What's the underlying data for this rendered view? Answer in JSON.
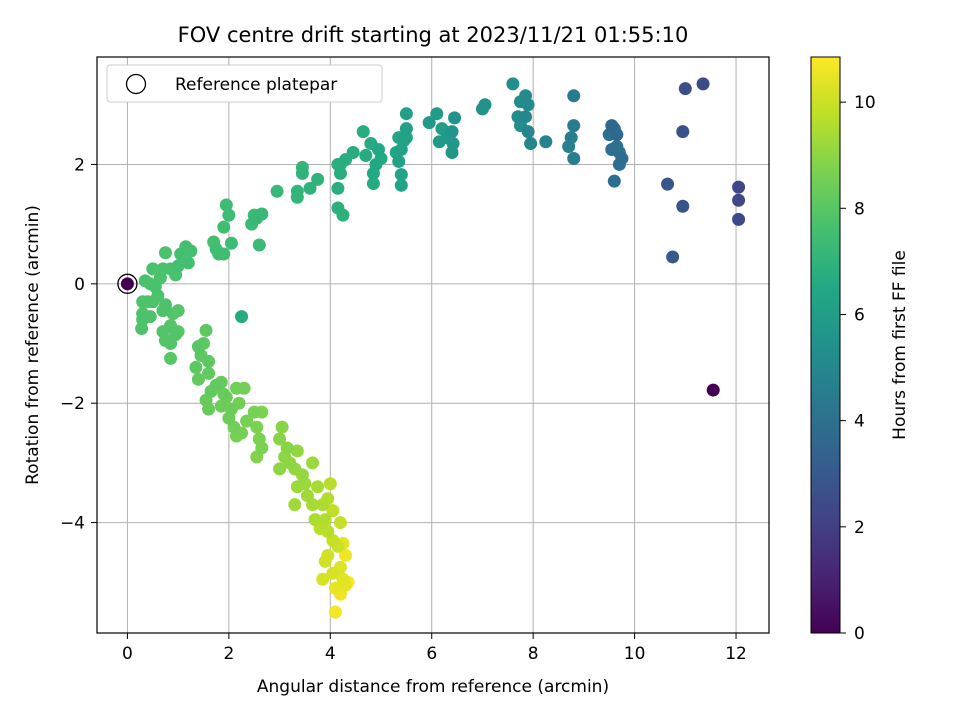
{
  "chart_data": {
    "type": "scatter",
    "title": "FOV centre drift starting at 2023/11/21 01:55:10",
    "xlabel": "Angular distance from reference (arcmin)",
    "ylabel": "Rotation from reference (arcmin)",
    "xlim": [
      -0.6,
      12.65
    ],
    "ylim": [
      -5.85,
      3.8
    ],
    "xticks": [
      0,
      2,
      4,
      6,
      8,
      10,
      12
    ],
    "yticks": [
      -4,
      -2,
      0,
      2
    ],
    "xtick_labels": [
      "0",
      "2",
      "4",
      "6",
      "8",
      "10",
      "12"
    ],
    "ytick_labels": [
      "−4",
      "−2",
      "0",
      "2"
    ],
    "grid": true,
    "legend": {
      "placement": "top-left",
      "entries": [
        "Reference platepar"
      ]
    },
    "colorbar": {
      "label": "Hours from first FF file",
      "range": [
        0,
        10.85
      ],
      "ticks": [
        0,
        2,
        4,
        6,
        8,
        10
      ],
      "tick_labels": [
        "0",
        "2",
        "4",
        "6",
        "8",
        "10"
      ],
      "colormap": "viridis"
    },
    "reference_point": {
      "x": 0,
      "y": 0,
      "hours": 0
    },
    "series": [
      {
        "points": [
          [
            11.55,
            -1.78,
            0.0
          ],
          [
            12.05,
            1.62,
            2.3
          ],
          [
            12.05,
            1.4,
            2.3
          ],
          [
            12.05,
            1.08,
            2.4
          ],
          [
            11.35,
            3.35,
            2.5
          ],
          [
            11.0,
            3.27,
            2.6
          ],
          [
            10.95,
            2.55,
            2.7
          ],
          [
            10.95,
            1.3,
            2.8
          ],
          [
            10.65,
            1.67,
            2.9
          ],
          [
            10.75,
            0.45,
            3.0
          ],
          [
            9.55,
            2.65,
            3.6
          ],
          [
            9.65,
            2.5,
            3.7
          ],
          [
            9.75,
            2.1,
            3.8
          ],
          [
            9.6,
            1.72,
            3.9
          ],
          [
            9.55,
            2.25,
            3.9
          ],
          [
            9.7,
            2.0,
            4.0
          ],
          [
            9.5,
            2.5,
            4.0
          ],
          [
            9.65,
            2.3,
            4.1
          ],
          [
            9.6,
            2.6,
            4.1
          ],
          [
            9.7,
            2.2,
            4.2
          ],
          [
            8.8,
            3.15,
            4.4
          ],
          [
            8.8,
            2.65,
            4.5
          ],
          [
            8.75,
            2.45,
            4.6
          ],
          [
            8.8,
            2.1,
            4.6
          ],
          [
            8.7,
            2.3,
            4.7
          ],
          [
            8.25,
            2.38,
            4.8
          ],
          [
            7.95,
            2.35,
            4.9
          ],
          [
            7.9,
            2.55,
            5.0
          ],
          [
            7.85,
            2.8,
            5.0
          ],
          [
            7.9,
            3.0,
            5.1
          ],
          [
            7.85,
            3.15,
            5.1
          ],
          [
            7.7,
            2.8,
            5.2
          ],
          [
            7.75,
            3.05,
            5.2
          ],
          [
            7.6,
            3.35,
            5.3
          ],
          [
            7.75,
            2.65,
            5.3
          ],
          [
            7.05,
            3.0,
            5.5
          ],
          [
            7.0,
            2.93,
            5.5
          ],
          [
            6.45,
            2.78,
            5.6
          ],
          [
            6.4,
            2.55,
            5.6
          ],
          [
            6.42,
            2.35,
            5.7
          ],
          [
            6.4,
            2.2,
            5.7
          ],
          [
            6.3,
            2.45,
            5.8
          ],
          [
            6.15,
            2.38,
            5.8
          ],
          [
            6.1,
            2.85,
            5.9
          ],
          [
            5.95,
            2.7,
            5.9
          ],
          [
            6.2,
            2.6,
            6.0
          ],
          [
            6.35,
            2.5,
            6.0
          ],
          [
            5.5,
            2.85,
            6.1
          ],
          [
            5.5,
            2.6,
            6.1
          ],
          [
            5.45,
            2.4,
            6.2
          ],
          [
            5.4,
            2.25,
            6.2
          ],
          [
            5.35,
            2.05,
            6.2
          ],
          [
            5.4,
            1.83,
            6.3
          ],
          [
            5.4,
            1.65,
            6.3
          ],
          [
            5.3,
            2.2,
            6.3
          ],
          [
            5.5,
            2.45,
            6.4
          ],
          [
            5.35,
            2.45,
            6.4
          ],
          [
            4.95,
            2.25,
            6.5
          ],
          [
            4.9,
            2.0,
            6.5
          ],
          [
            4.85,
            1.85,
            6.5
          ],
          [
            4.85,
            1.68,
            6.6
          ],
          [
            4.8,
            2.35,
            6.6
          ],
          [
            5.0,
            2.1,
            6.6
          ],
          [
            4.7,
            2.15,
            6.6
          ],
          [
            4.65,
            2.55,
            6.7
          ],
          [
            4.45,
            2.2,
            6.7
          ],
          [
            4.3,
            2.08,
            6.7
          ],
          [
            4.2,
            2.0,
            6.8
          ],
          [
            4.2,
            1.85,
            6.8
          ],
          [
            4.15,
            1.6,
            6.8
          ],
          [
            4.15,
            1.27,
            6.9
          ],
          [
            4.25,
            1.15,
            6.9
          ],
          [
            4.15,
            2.0,
            6.9
          ],
          [
            3.75,
            1.75,
            7.0
          ],
          [
            3.6,
            1.6,
            7.0
          ],
          [
            3.45,
            1.85,
            7.0
          ],
          [
            3.45,
            1.95,
            7.1
          ],
          [
            3.35,
            1.55,
            7.1
          ],
          [
            3.35,
            1.45,
            7.1
          ],
          [
            2.95,
            1.55,
            7.2
          ],
          [
            2.65,
            1.17,
            7.2
          ],
          [
            2.55,
            1.1,
            7.2
          ],
          [
            2.5,
            1.15,
            7.3
          ],
          [
            2.45,
            1.0,
            7.3
          ],
          [
            2.6,
            0.65,
            7.3
          ],
          [
            2.05,
            0.68,
            7.4
          ],
          [
            1.95,
            1.32,
            7.4
          ],
          [
            2.0,
            1.15,
            7.4
          ],
          [
            1.9,
            0.95,
            7.5
          ],
          [
            1.9,
            0.5,
            7.5
          ],
          [
            1.8,
            0.5,
            7.5
          ],
          [
            1.75,
            0.58,
            7.5
          ],
          [
            1.7,
            0.7,
            7.6
          ],
          [
            2.25,
            -0.55,
            6.6
          ],
          [
            1.15,
            0.62,
            7.6
          ],
          [
            1.25,
            0.55,
            7.6
          ],
          [
            1.05,
            0.5,
            7.6
          ],
          [
            1.2,
            0.35,
            7.6
          ],
          [
            1.0,
            0.3,
            7.6
          ],
          [
            0.95,
            0.15,
            7.7
          ],
          [
            0.85,
            0.25,
            7.7
          ],
          [
            0.75,
            0.52,
            7.7
          ],
          [
            0.7,
            0.25,
            7.7
          ],
          [
            0.65,
            0.1,
            7.7
          ],
          [
            0.5,
            0.25,
            7.7
          ],
          [
            0.55,
            -0.05,
            7.7
          ],
          [
            0.45,
            0.0,
            7.7
          ],
          [
            0.35,
            0.05,
            7.7
          ],
          [
            0.5,
            -0.3,
            7.8
          ],
          [
            0.4,
            -0.3,
            7.8
          ],
          [
            0.3,
            -0.5,
            7.8
          ],
          [
            0.6,
            -0.2,
            7.8
          ],
          [
            0.7,
            -0.45,
            7.8
          ],
          [
            0.45,
            -0.55,
            7.8
          ],
          [
            0.3,
            -0.6,
            7.8
          ],
          [
            0.3,
            -0.3,
            7.8
          ],
          [
            0.28,
            -0.75,
            7.8
          ],
          [
            0.75,
            -0.35,
            7.8
          ],
          [
            0.9,
            -0.5,
            7.9
          ],
          [
            1.0,
            -0.45,
            7.9
          ],
          [
            0.85,
            -0.7,
            7.9
          ],
          [
            0.95,
            -0.85,
            7.9
          ],
          [
            0.85,
            -1.0,
            7.9
          ],
          [
            0.75,
            -0.95,
            7.9
          ],
          [
            0.7,
            -0.8,
            7.9
          ],
          [
            0.85,
            -1.25,
            8.0
          ],
          [
            1.0,
            -0.8,
            8.0
          ],
          [
            1.4,
            -1.05,
            8.0
          ],
          [
            1.5,
            -1.0,
            8.1
          ],
          [
            1.45,
            -1.2,
            8.1
          ],
          [
            1.6,
            -1.3,
            8.1
          ],
          [
            1.55,
            -0.78,
            8.1
          ],
          [
            1.35,
            -1.4,
            8.1
          ],
          [
            1.6,
            -1.5,
            8.2
          ],
          [
            1.4,
            -1.6,
            8.2
          ],
          [
            1.75,
            -1.7,
            8.2
          ],
          [
            1.65,
            -1.8,
            8.2
          ],
          [
            1.85,
            -1.65,
            8.3
          ],
          [
            1.9,
            -1.85,
            8.3
          ],
          [
            1.55,
            -1.95,
            8.3
          ],
          [
            1.6,
            -2.1,
            8.3
          ],
          [
            1.95,
            -1.9,
            8.4
          ],
          [
            1.85,
            -2.05,
            8.4
          ],
          [
            2.05,
            -2.1,
            8.4
          ],
          [
            2.0,
            -2.25,
            8.4
          ],
          [
            2.15,
            -1.75,
            8.5
          ],
          [
            2.2,
            -2.0,
            8.5
          ],
          [
            2.3,
            -1.75,
            8.5
          ],
          [
            2.1,
            -2.4,
            8.5
          ],
          [
            2.15,
            -2.55,
            8.6
          ],
          [
            2.25,
            -2.5,
            8.6
          ],
          [
            2.35,
            -2.3,
            8.6
          ],
          [
            2.5,
            -2.15,
            8.6
          ],
          [
            2.65,
            -2.15,
            8.7
          ],
          [
            2.55,
            -2.4,
            8.7
          ],
          [
            2.6,
            -2.6,
            8.7
          ],
          [
            2.65,
            -2.75,
            8.7
          ],
          [
            2.55,
            -2.9,
            8.8
          ],
          [
            3.05,
            -2.4,
            8.9
          ],
          [
            3.0,
            -2.6,
            8.9
          ],
          [
            3.15,
            -2.75,
            8.9
          ],
          [
            3.1,
            -2.9,
            9.0
          ],
          [
            3.0,
            -3.1,
            9.0
          ],
          [
            3.2,
            -3.0,
            9.0
          ],
          [
            3.35,
            -2.8,
            9.1
          ],
          [
            3.3,
            -3.1,
            9.1
          ],
          [
            3.45,
            -3.2,
            9.1
          ],
          [
            3.35,
            -3.4,
            9.2
          ],
          [
            3.5,
            -3.35,
            9.2
          ],
          [
            3.65,
            -3.0,
            9.2
          ],
          [
            3.55,
            -3.55,
            9.3
          ],
          [
            3.3,
            -3.7,
            9.3
          ],
          [
            3.75,
            -3.4,
            9.4
          ],
          [
            3.65,
            -3.7,
            9.4
          ],
          [
            3.7,
            -3.95,
            9.5
          ],
          [
            3.85,
            -3.7,
            9.5
          ],
          [
            3.95,
            -3.6,
            9.6
          ],
          [
            3.9,
            -3.95,
            9.6
          ],
          [
            3.8,
            -4.1,
            9.7
          ],
          [
            3.95,
            -4.15,
            9.7
          ],
          [
            4.0,
            -3.35,
            9.7
          ],
          [
            4.05,
            -3.8,
            9.8
          ],
          [
            4.2,
            -4.0,
            9.9
          ],
          [
            4.05,
            -4.3,
            9.9
          ],
          [
            4.15,
            -4.4,
            10.0
          ],
          [
            3.95,
            -4.55,
            10.1
          ],
          [
            3.9,
            -4.65,
            10.1
          ],
          [
            3.85,
            -4.95,
            10.2
          ],
          [
            4.05,
            -4.85,
            10.2
          ],
          [
            4.2,
            -4.75,
            10.3
          ],
          [
            4.25,
            -4.95,
            10.4
          ],
          [
            4.3,
            -5.05,
            10.5
          ],
          [
            4.1,
            -5.1,
            10.5
          ],
          [
            4.2,
            -5.2,
            10.6
          ],
          [
            4.1,
            -5.5,
            10.7
          ],
          [
            4.35,
            -5.0,
            10.8
          ],
          [
            4.3,
            -4.55,
            10.6
          ],
          [
            4.25,
            -4.35,
            10.4
          ]
        ]
      }
    ]
  }
}
